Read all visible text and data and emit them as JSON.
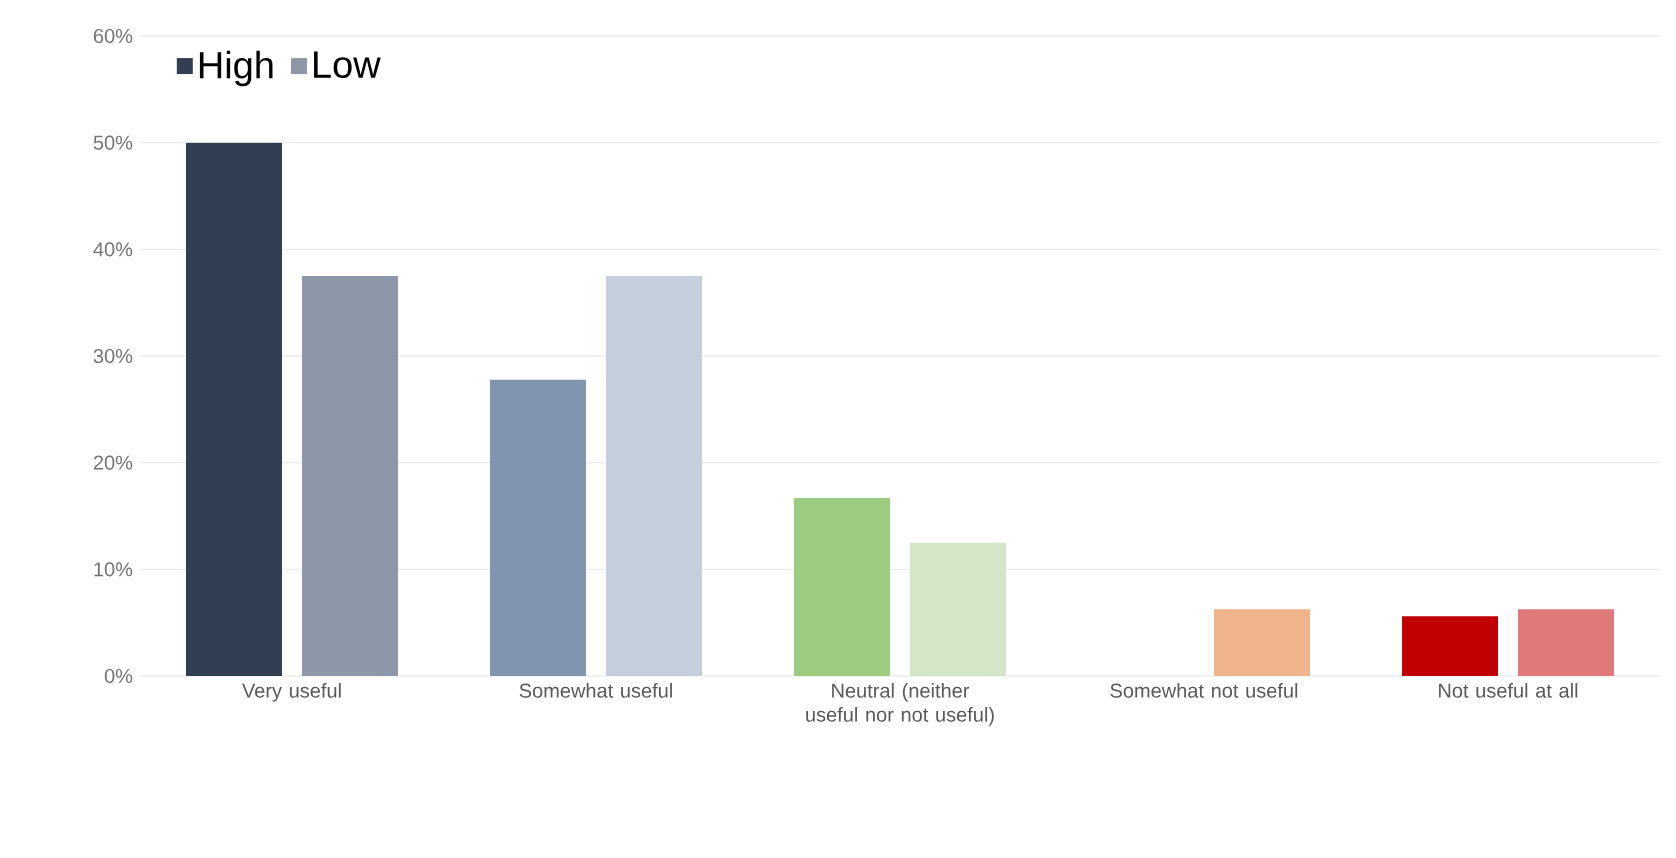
{
  "chart_data": {
    "type": "bar",
    "categories": [
      "Very useful",
      "Somewhat useful",
      "Neutral (neither useful nor not useful)",
      "Somewhat not useful",
      "Not useful at all"
    ],
    "series": [
      {
        "name": "High",
        "colors": [
          "#323f52",
          "#7f95b0",
          "#9ccc80",
          "#f4b084",
          "#c00000"
        ],
        "values": [
          50,
          27.8,
          16.7,
          0,
          5.6
        ]
      },
      {
        "name": "Low",
        "colors": [
          "#8c97a8",
          "#c5cedd",
          "#d3e6c8",
          "#f0b48c",
          "#e07a7a"
        ],
        "values": [
          37.5,
          37.5,
          12.5,
          6.25,
          6.25
        ]
      }
    ],
    "ylim": [
      0,
      60
    ],
    "yticks": [
      {
        "value": 0,
        "label": "0%"
      },
      {
        "value": 10,
        "label": "10%"
      },
      {
        "value": 20,
        "label": "20%"
      },
      {
        "value": 30,
        "label": "30%"
      },
      {
        "value": 40,
        "label": "40%"
      },
      {
        "value": 50,
        "label": "50%"
      },
      {
        "value": 60,
        "label": "60%"
      }
    ],
    "grid": "y",
    "legend": "top left"
  }
}
